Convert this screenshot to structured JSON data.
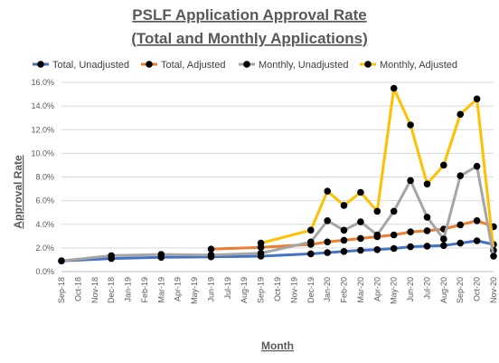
{
  "chart_data": {
    "type": "line",
    "title": "PSLF Application Approval Rate",
    "subtitle": "(Total and Monthly Applications)",
    "xlabel": "Month",
    "ylabel": "Approval Rate",
    "legend_position": "top",
    "grid": "horizontal",
    "ylim": [
      0,
      16
    ],
    "y_ticks": [
      "0.0%",
      "2.0%",
      "4.0%",
      "6.0%",
      "8.0%",
      "10.0%",
      "12.0%",
      "14.0%",
      "16.0%"
    ],
    "x_ticks": [
      "Sep-18",
      "Oct-18",
      "Nov-18",
      "Dec-18",
      "Jan-19",
      "Feb-19",
      "Mar-19",
      "Apr-19",
      "May-19",
      "Jun-19",
      "Jul-19",
      "Aug-19",
      "Sep-19",
      "Oct-19",
      "Nov-19",
      "Dec-19",
      "Jan-20",
      "Feb-20",
      "Mar-20",
      "Apr-20",
      "May-20",
      "Jun-20",
      "Jul-20",
      "Aug-20",
      "Sep-20",
      "Oct-20",
      "Nov-20"
    ],
    "series": [
      {
        "name": "Total, Unadjusted",
        "color": "#4472C4",
        "x": [
          "Sep-18",
          "Dec-18",
          "Mar-19",
          "Jun-19",
          "Sep-19",
          "Dec-19",
          "Jan-20",
          "Feb-20",
          "Mar-20",
          "Apr-20",
          "May-20",
          "Jun-20",
          "Jul-20",
          "Aug-20",
          "Sep-20",
          "Oct-20",
          "Nov-20"
        ],
        "values": [
          0.9,
          1.1,
          1.2,
          1.25,
          1.3,
          1.5,
          1.6,
          1.7,
          1.8,
          1.85,
          1.95,
          2.1,
          2.15,
          2.2,
          2.4,
          2.6,
          2.3
        ]
      },
      {
        "name": "Total, Adjusted",
        "color": "#ED7D31",
        "x": [
          "Jun-19",
          "Sep-19",
          "Dec-19",
          "Jan-20",
          "Feb-20",
          "Mar-20",
          "Apr-20",
          "May-20",
          "Jun-20",
          "Jul-20",
          "Aug-20",
          "Sep-20",
          "Oct-20",
          "Nov-20"
        ],
        "values": [
          1.9,
          2.05,
          2.3,
          2.5,
          2.65,
          2.8,
          2.95,
          3.1,
          3.35,
          3.45,
          3.6,
          3.95,
          4.3,
          3.8
        ]
      },
      {
        "name": "Monthly, Unadjusted",
        "color": "#A5A5A5",
        "x": [
          "Sep-18",
          "Dec-18",
          "Mar-19",
          "Jun-19",
          "Sep-19",
          "Dec-19",
          "Jan-20",
          "Feb-20",
          "Mar-20",
          "Apr-20",
          "May-20",
          "Jun-20",
          "Jul-20",
          "Aug-20",
          "Sep-20",
          "Oct-20",
          "Nov-20"
        ],
        "values": [
          0.9,
          1.35,
          1.45,
          1.4,
          1.55,
          2.5,
          4.3,
          3.5,
          4.2,
          3.1,
          5.1,
          7.7,
          4.6,
          2.75,
          8.1,
          8.9,
          1.3
        ]
      },
      {
        "name": "Monthly, Adjusted",
        "color": "#FFC000",
        "x": [
          "Sep-19",
          "Dec-19",
          "Jan-20",
          "Feb-20",
          "Mar-20",
          "Apr-20",
          "May-20",
          "Jun-20",
          "Jul-20",
          "Aug-20",
          "Sep-20",
          "Oct-20",
          "Nov-20"
        ],
        "values": [
          2.4,
          3.5,
          6.8,
          5.6,
          6.7,
          5.1,
          15.5,
          12.4,
          7.4,
          9.0,
          13.3,
          14.6,
          1.8
        ]
      }
    ]
  }
}
